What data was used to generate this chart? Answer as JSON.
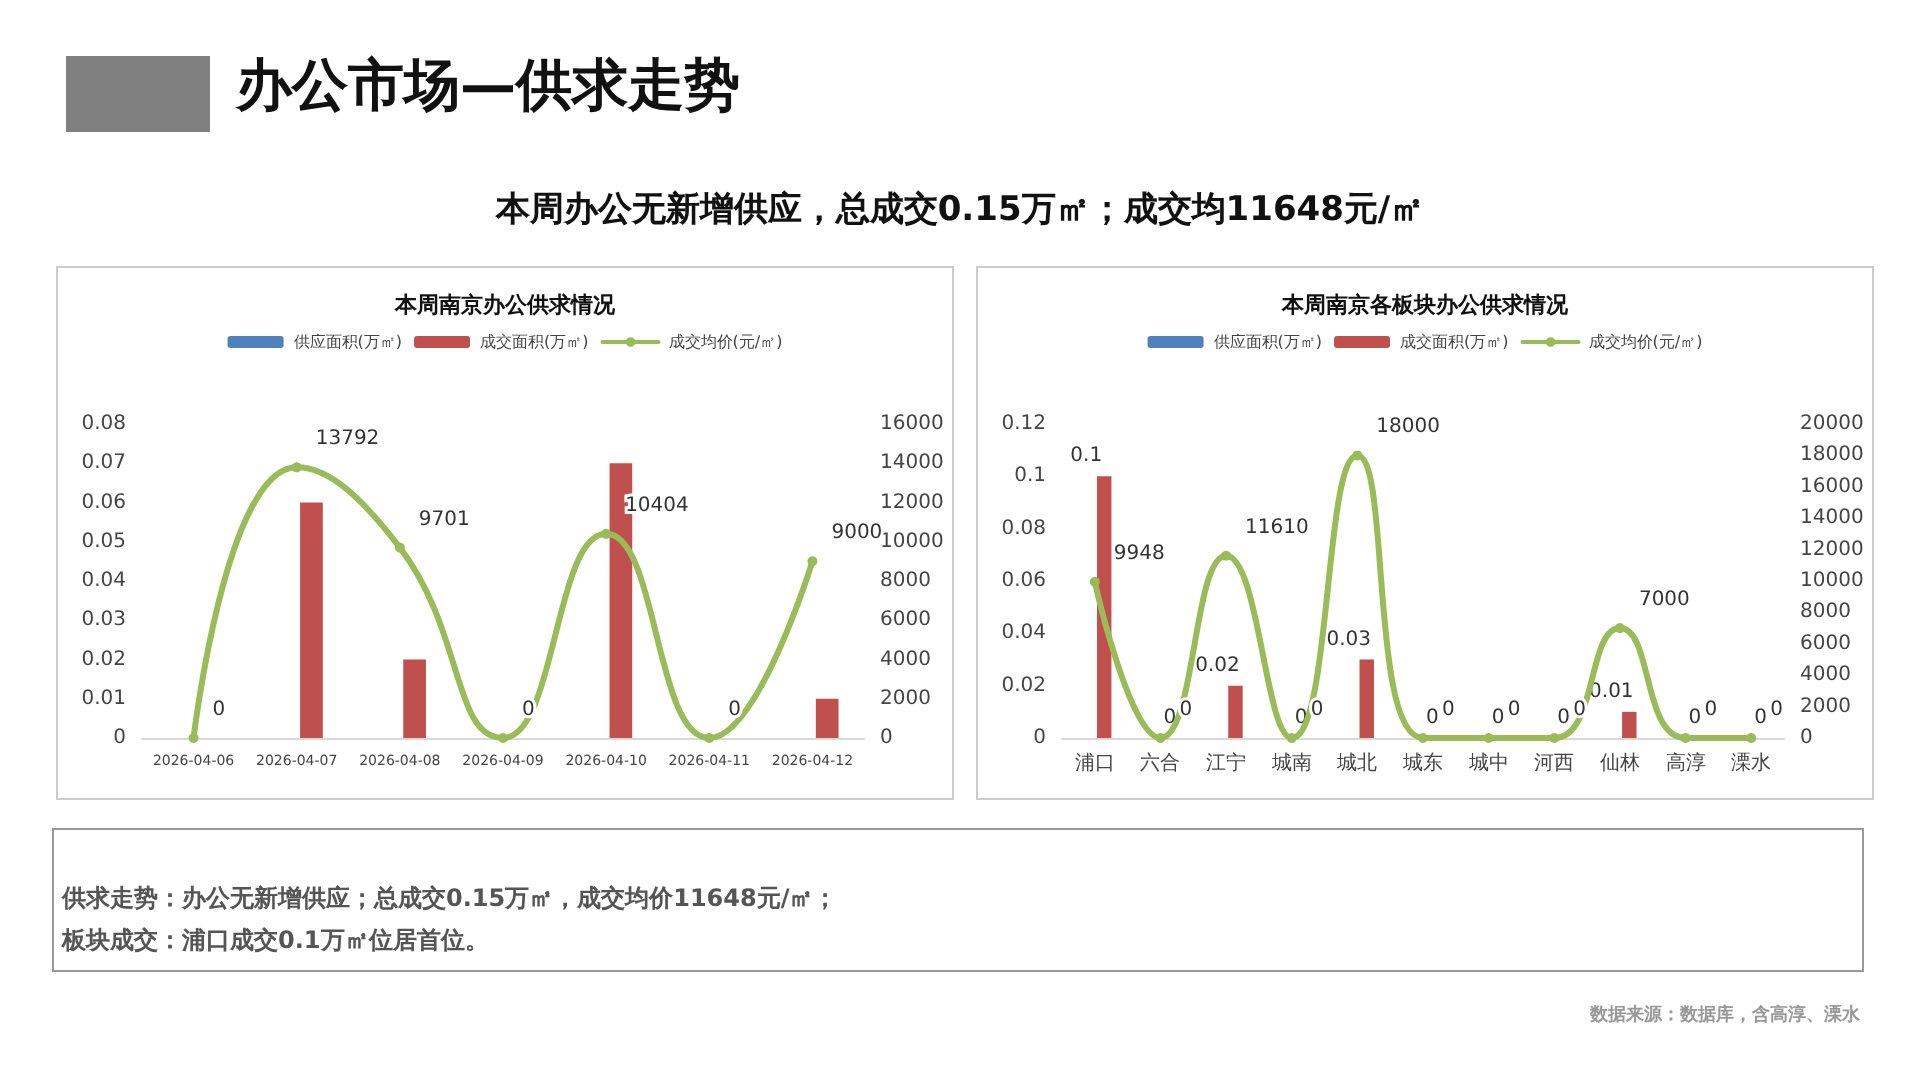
{
  "chart_data": [
    {
      "type": "bar",
      "title": "本周南京办公供求情况",
      "categories": [
        "2026-04-06",
        "2026-04-07",
        "2026-04-08",
        "2026-04-09",
        "2026-04-10",
        "2026-04-11",
        "2026-04-12"
      ],
      "legend": "top",
      "grid": false,
      "ylim": [
        0,
        0.08
      ],
      "yticks": [
        0,
        0.01,
        0.02,
        0.03,
        0.04,
        0.05,
        0.06,
        0.07,
        0.08
      ],
      "y2lim": [
        0,
        16000
      ],
      "y2ticks": [
        0,
        2000,
        4000,
        6000,
        8000,
        10000,
        12000,
        14000,
        16000
      ],
      "series": [
        {
          "name": "供应面积(万㎡)",
          "color": "#4f81bd",
          "values": [
            0,
            0,
            0,
            0,
            0,
            0,
            0
          ]
        },
        {
          "name": "成交面积(万㎡)",
          "color": "#c0504d",
          "values": [
            0,
            0.06,
            0.02,
            0,
            0.07,
            0,
            0.01
          ]
        },
        {
          "name": "成交均价(元/㎡)",
          "type": "line",
          "axis": "y2",
          "marker": "circle",
          "line_style": "solid",
          "color": "#9bbb59",
          "values": [
            0,
            13792,
            9701,
            0,
            10404,
            0,
            9000
          ],
          "value_labels": [
            "0",
            "13792",
            "9701",
            "0",
            "10404",
            "0",
            "9000"
          ]
        }
      ]
    },
    {
      "type": "bar",
      "title": "本周南京各板块办公供求情况",
      "categories": [
        "浦口",
        "六合",
        "江宁",
        "城南",
        "城北",
        "城东",
        "城中",
        "河西",
        "仙林",
        "高淳",
        "溧水"
      ],
      "legend": "top",
      "grid": false,
      "ylim": [
        0,
        0.12
      ],
      "yticks": [
        0,
        0.02,
        0.04,
        0.06,
        0.08,
        0.1,
        0.12
      ],
      "y2lim": [
        0,
        20000
      ],
      "y2ticks": [
        0,
        2000,
        4000,
        6000,
        8000,
        10000,
        12000,
        14000,
        16000,
        18000,
        20000
      ],
      "series": [
        {
          "name": "供应面积(万㎡)",
          "color": "#4f81bd",
          "values": [
            0,
            0,
            0,
            0,
            0,
            0,
            0,
            0,
            0,
            0,
            0
          ]
        },
        {
          "name": "成交面积(万㎡)",
          "color": "#c0504d",
          "values": [
            0.1,
            0,
            0.02,
            0,
            0.03,
            0,
            0,
            0,
            0.01,
            0,
            0
          ],
          "value_labels": [
            "0.1",
            "0",
            "0.02",
            "0",
            "0.03",
            "0",
            "0",
            "0",
            "0.01",
            "0",
            "0"
          ]
        },
        {
          "name": "成交均价(元/㎡)",
          "type": "line",
          "axis": "y2",
          "marker": "circle",
          "line_style": "solid",
          "color": "#9bbb59",
          "values": [
            9948,
            0,
            11610,
            0,
            18000,
            0,
            0,
            0,
            7000,
            0,
            0
          ],
          "value_labels": [
            "9948",
            "0",
            "11610",
            "0",
            "18000",
            "0",
            "0",
            "0",
            "7000",
            "0",
            "0"
          ]
        }
      ]
    },
    {
      "type": "other",
      "title": "办公市场—供求走势",
      "subtitle": "本周办公无新增供应，总成交0.15万㎡；成交均11648元/㎡",
      "annotations": [
        "供求走势：办公无新增供应；总成交0.15万㎡，成交均价11648元/㎡；",
        "板块成交：浦口成交0.1万㎡位居首位。",
        "数据来源：数据库，含高淳、溧水"
      ]
    }
  ]
}
